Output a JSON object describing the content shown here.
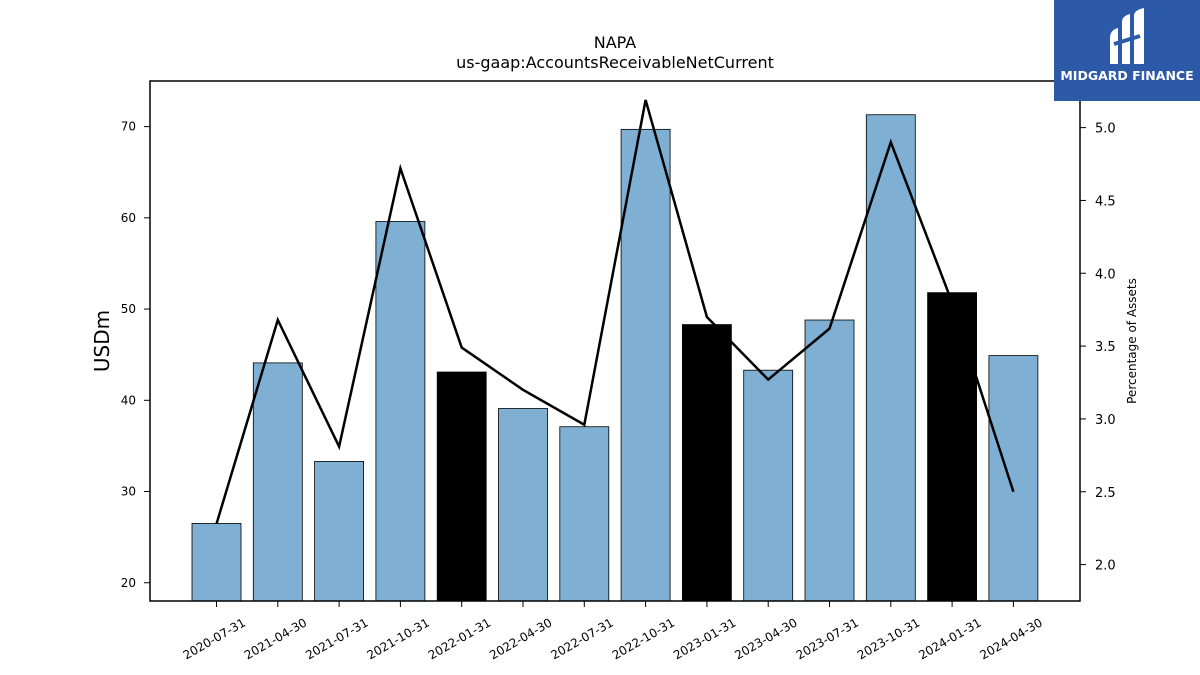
{
  "chart_data": {
    "type": "bar",
    "title": "NAPA",
    "subtitle": "us-gaap:AccountsReceivableNetCurrent",
    "ylabel": "USDm",
    "ylabel_right": "Percentage of Assets",
    "categories": [
      "2020-07-31",
      "2021-04-30",
      "2021-07-31",
      "2021-10-31",
      "2022-01-31",
      "2022-04-30",
      "2022-07-31",
      "2022-10-31",
      "2023-01-31",
      "2023-04-30",
      "2023-07-31",
      "2023-10-31",
      "2024-01-31",
      "2024-04-30"
    ],
    "series": [
      {
        "type": "bar",
        "axis": "left",
        "values": [
          26.5,
          44.1,
          33.3,
          59.6,
          43.1,
          39.1,
          37.1,
          69.7,
          48.3,
          43.3,
          48.8,
          71.3,
          51.8,
          44.9
        ],
        "colors": [
          "#7fafd3",
          "#7fafd3",
          "#7fafd3",
          "#7fafd3",
          "#000000",
          "#7fafd3",
          "#7fafd3",
          "#7fafd3",
          "#000000",
          "#7fafd3",
          "#7fafd3",
          "#7fafd3",
          "#000000",
          "#7fafd3"
        ]
      },
      {
        "type": "line",
        "axis": "right",
        "color": "#000000",
        "values": [
          2.28,
          3.68,
          2.81,
          4.72,
          3.49,
          3.2,
          2.96,
          5.19,
          3.7,
          3.27,
          3.62,
          4.9,
          3.8,
          2.5
        ]
      }
    ],
    "ylim": [
      18,
      75
    ],
    "ylim_right": [
      1.75,
      5.32
    ],
    "yticks": [
      20,
      30,
      40,
      50,
      60,
      70
    ],
    "yticks_right": [
      "2.0",
      "2.5",
      "3.0",
      "3.5",
      "4.0",
      "4.5",
      "5.0"
    ],
    "grid": false
  },
  "logo": {
    "text": "MIDGARD FINANCE",
    "background": "#2d5aa8"
  }
}
